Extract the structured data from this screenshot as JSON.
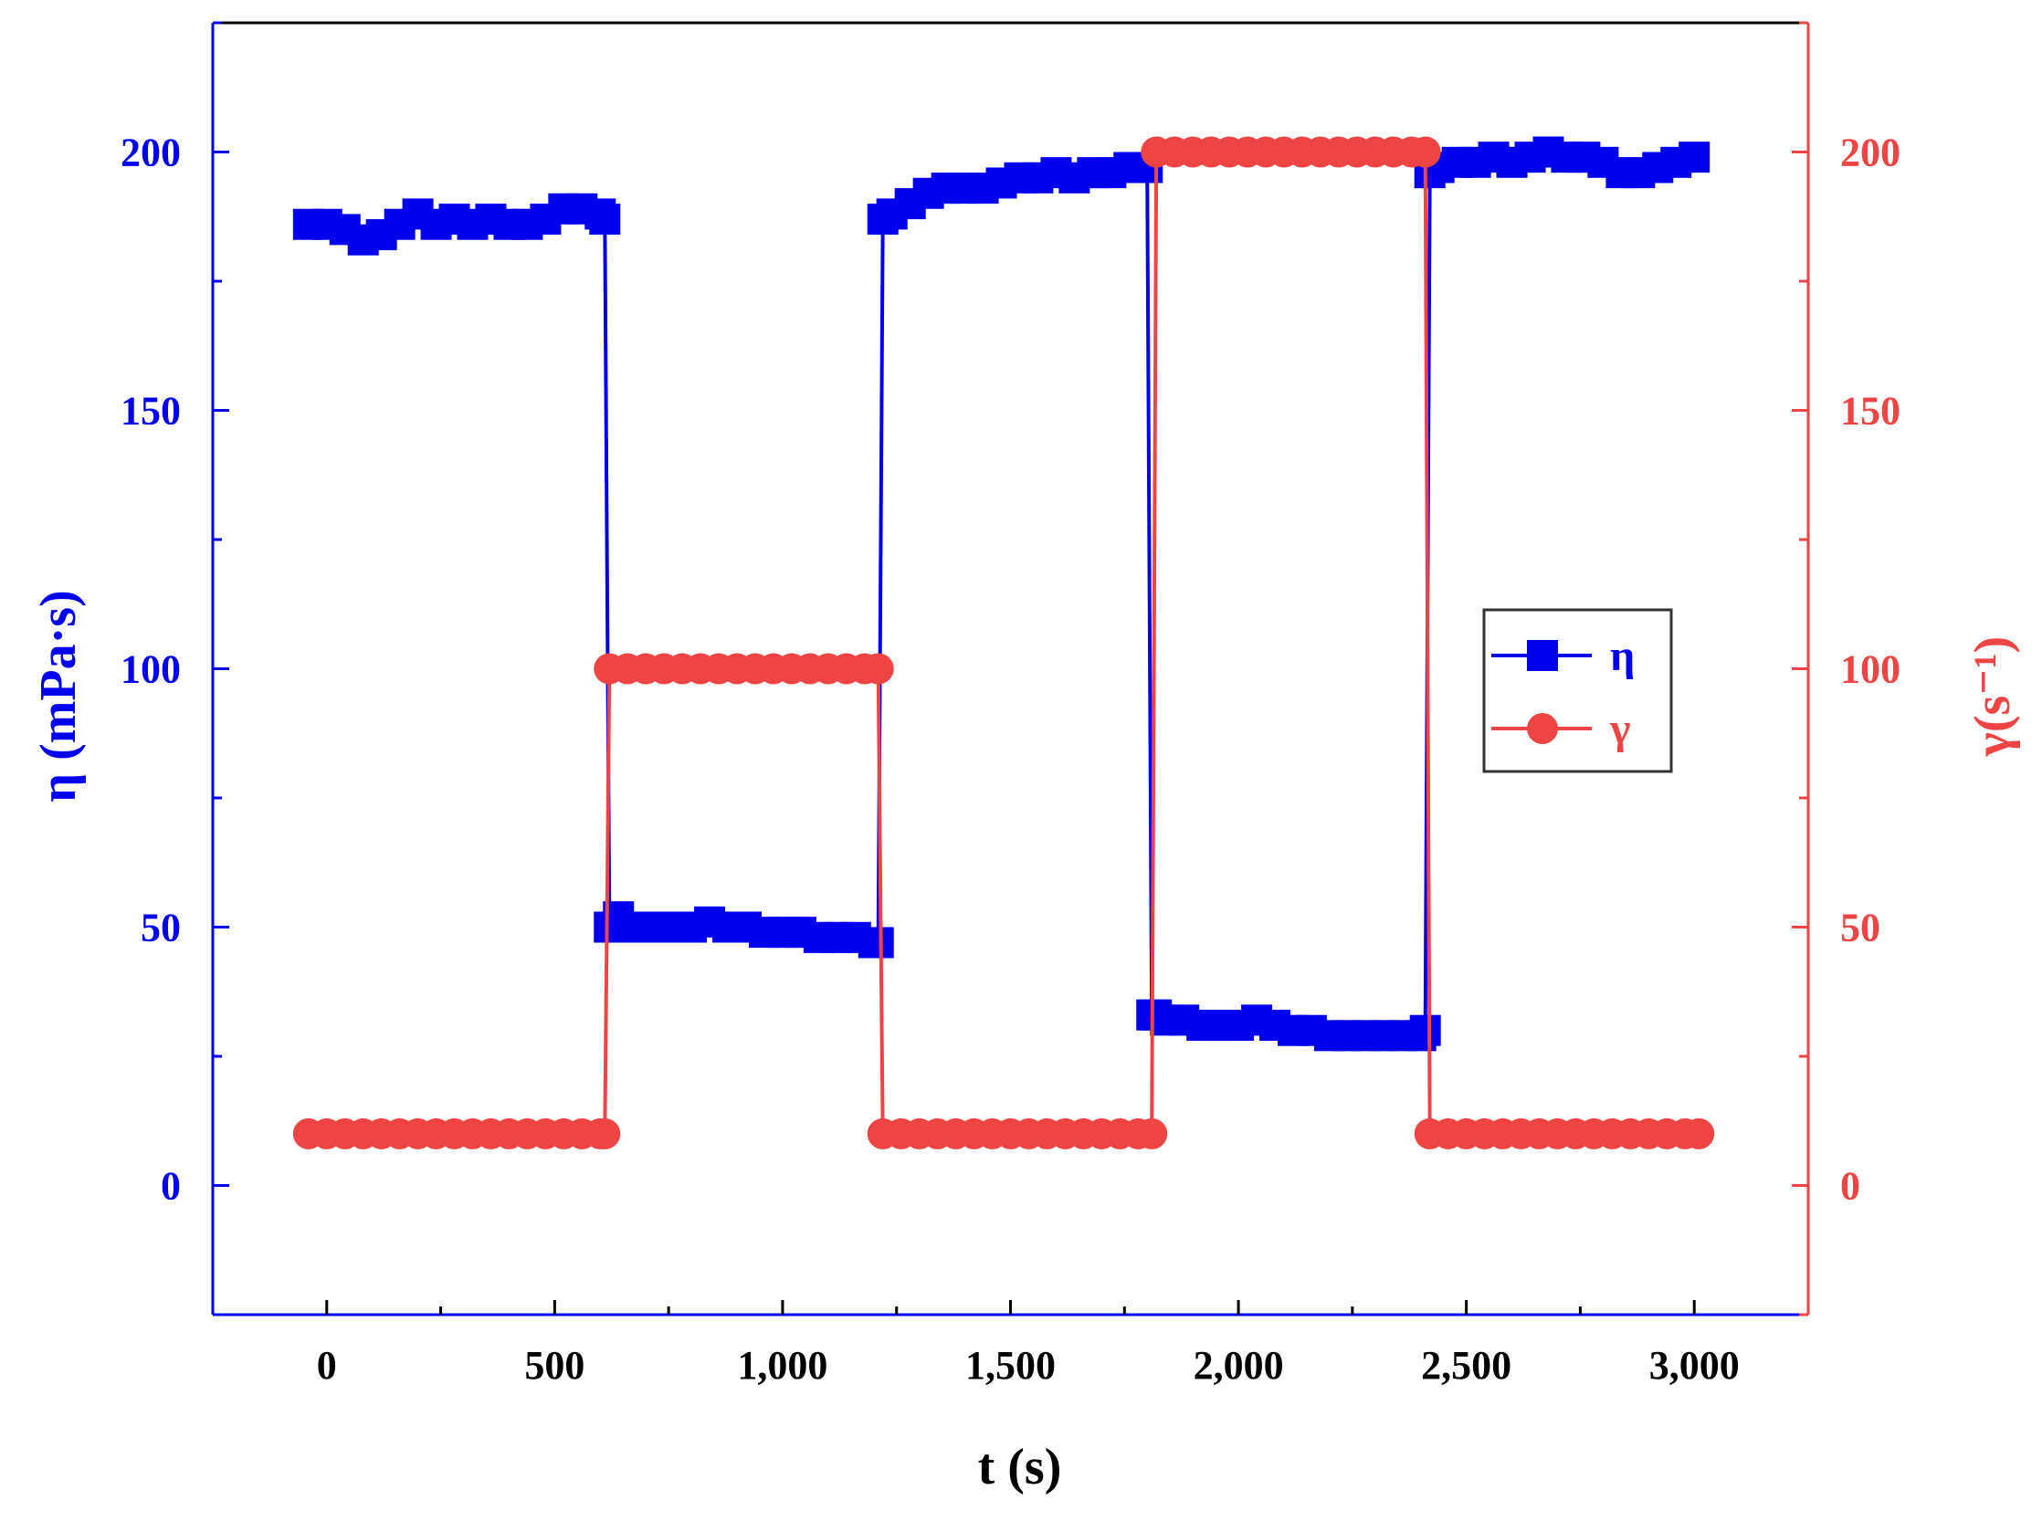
{
  "chart_data": {
    "type": "line",
    "xlabel": "t (s)",
    "ylabel": "η (mPa·s)",
    "y2label": "γ(s⁻¹)",
    "x_ticks": [
      0,
      500,
      1000,
      1500,
      2000,
      2500,
      3000
    ],
    "x_tick_labels": [
      "0",
      "500",
      "1,000",
      "1,500",
      "2,000",
      "2,500",
      "3,000"
    ],
    "xlim": [
      -250,
      3250
    ],
    "y_ticks": [
      0,
      50,
      100,
      150,
      200
    ],
    "y_tick_labels": [
      "0",
      "50",
      "100",
      "150",
      "200"
    ],
    "ylim": [
      -25,
      225
    ],
    "y2_ticks": [
      0,
      50,
      100,
      150,
      200
    ],
    "y2_tick_labels": [
      "0",
      "50",
      "100",
      "150",
      "200"
    ],
    "y2lim": [
      -25,
      225
    ],
    "grid": false,
    "legend_position": "center-right",
    "series": [
      {
        "name": "η",
        "axis": "left",
        "color": "#0000ee",
        "marker": "square",
        "x": [
          -40,
          0,
          40,
          80,
          120,
          160,
          200,
          240,
          280,
          320,
          360,
          400,
          440,
          480,
          520,
          560,
          600,
          610,
          620,
          640,
          680,
          720,
          760,
          800,
          840,
          880,
          920,
          960,
          1000,
          1040,
          1080,
          1120,
          1160,
          1200,
          1210,
          1220,
          1240,
          1280,
          1320,
          1360,
          1400,
          1440,
          1480,
          1520,
          1560,
          1600,
          1640,
          1680,
          1720,
          1760,
          1800,
          1810,
          1820,
          1840,
          1880,
          1920,
          1960,
          2000,
          2040,
          2080,
          2120,
          2160,
          2200,
          2240,
          2280,
          2320,
          2360,
          2400,
          2410,
          2420,
          2440,
          2480,
          2520,
          2560,
          2600,
          2640,
          2680,
          2720,
          2760,
          2800,
          2840,
          2880,
          2920,
          2960,
          3000
        ],
        "y": [
          186,
          186,
          185,
          183,
          184,
          186,
          188,
          186,
          187,
          186,
          187,
          186,
          186,
          187,
          189,
          189,
          188,
          187,
          50,
          52,
          50,
          50,
          50,
          50,
          51,
          50,
          50,
          49,
          49,
          49,
          48,
          48,
          48,
          47,
          47,
          187,
          188,
          190,
          192,
          193,
          193,
          193,
          194,
          195,
          195,
          196,
          195,
          196,
          196,
          197,
          197,
          33,
          33,
          32,
          32,
          31,
          31,
          31,
          32,
          31,
          30,
          30,
          29,
          29,
          29,
          29,
          29,
          29,
          30,
          196,
          197,
          198,
          198,
          199,
          198,
          199,
          200,
          199,
          199,
          198,
          196,
          196,
          197,
          198,
          199
        ]
      },
      {
        "name": "γ",
        "axis": "right",
        "color": "#ee4444",
        "marker": "circle",
        "x": [
          -40,
          0,
          40,
          80,
          120,
          160,
          200,
          240,
          280,
          320,
          360,
          400,
          440,
          480,
          520,
          560,
          600,
          610,
          620,
          660,
          700,
          740,
          780,
          820,
          860,
          900,
          940,
          980,
          1020,
          1060,
          1100,
          1140,
          1180,
          1210,
          1220,
          1260,
          1300,
          1340,
          1380,
          1420,
          1460,
          1500,
          1540,
          1580,
          1620,
          1660,
          1700,
          1740,
          1780,
          1810,
          1820,
          1860,
          1900,
          1940,
          1980,
          2020,
          2060,
          2100,
          2140,
          2180,
          2220,
          2260,
          2300,
          2340,
          2380,
          2410,
          2420,
          2460,
          2500,
          2540,
          2580,
          2620,
          2660,
          2700,
          2740,
          2780,
          2820,
          2860,
          2900,
          2940,
          2980,
          3010
        ],
        "y": [
          10,
          10,
          10,
          10,
          10,
          10,
          10,
          10,
          10,
          10,
          10,
          10,
          10,
          10,
          10,
          10,
          10,
          10,
          100,
          100,
          100,
          100,
          100,
          100,
          100,
          100,
          100,
          100,
          100,
          100,
          100,
          100,
          100,
          100,
          10,
          10,
          10,
          10,
          10,
          10,
          10,
          10,
          10,
          10,
          10,
          10,
          10,
          10,
          10,
          10,
          200,
          200,
          200,
          200,
          200,
          200,
          200,
          200,
          200,
          200,
          200,
          200,
          200,
          200,
          200,
          200,
          10,
          10,
          10,
          10,
          10,
          10,
          10,
          10,
          10,
          10,
          10,
          10,
          10,
          10,
          10,
          10
        ]
      }
    ]
  }
}
